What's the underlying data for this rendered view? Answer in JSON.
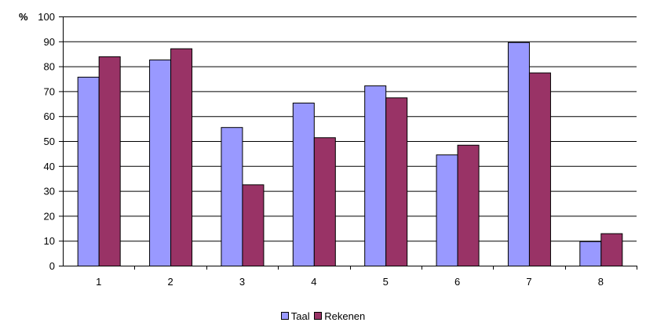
{
  "chart_data": {
    "type": "bar",
    "ylabel": "%",
    "ylim": [
      0,
      100
    ],
    "yticks": [
      0,
      10,
      20,
      30,
      40,
      50,
      60,
      70,
      80,
      90,
      100
    ],
    "categories": [
      "1",
      "2",
      "3",
      "4",
      "5",
      "6",
      "7",
      "8"
    ],
    "series": [
      {
        "name": "Taal",
        "color": "#9999ff",
        "values": [
          75.8,
          82.7,
          55.6,
          65.4,
          72.3,
          44.6,
          89.7,
          9.8
        ]
      },
      {
        "name": "Rekenen",
        "color": "#993366",
        "values": [
          84.0,
          87.2,
          32.6,
          51.5,
          67.5,
          48.5,
          77.5,
          13.0
        ]
      }
    ],
    "grid": true,
    "legend_position": "bottom"
  }
}
